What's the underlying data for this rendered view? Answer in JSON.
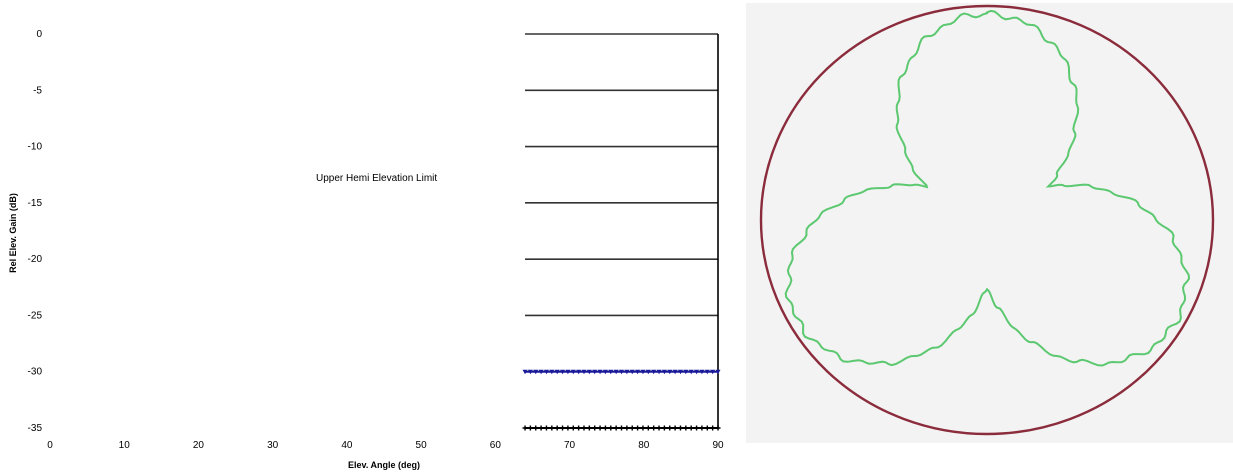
{
  "chart_data": [
    {
      "type": "line",
      "title": "",
      "xlabel": "Elev. Angle (deg)",
      "ylabel": "Rel Elev. Gain (dB)",
      "xlim": [
        0,
        90
      ],
      "ylim": [
        -35,
        0
      ],
      "x_ticks": [
        "0",
        "10",
        "20",
        "30",
        "40",
        "50",
        "60",
        "70",
        "80",
        "90"
      ],
      "y_ticks": [
        "0",
        "-5",
        "-10",
        "-15",
        "-20",
        "-25",
        "-30",
        "-35"
      ],
      "grid": "horizontal gridlines from x=64 to x=90",
      "annotation": "Upper Hemi Elevation Limit",
      "series": [
        {
          "color": "#1a1a9a",
          "marker": "triangle",
          "x": [
            64,
            66,
            68,
            70,
            72,
            74,
            76,
            78,
            80,
            82,
            84,
            86,
            88,
            90
          ],
          "y": [
            -30,
            -30,
            -30,
            -30,
            -30,
            -30,
            -30,
            -30,
            -30,
            -30,
            -30,
            -30,
            -30,
            -30
          ]
        },
        {
          "color": "#000000",
          "marker": "plus",
          "x": [
            64,
            66,
            68,
            70,
            72,
            74,
            76,
            78,
            80,
            82,
            84,
            86,
            88,
            90
          ],
          "y": [
            -35,
            -35,
            -35,
            -35,
            -35,
            -35,
            -35,
            -35,
            -35,
            -35,
            -35,
            -35,
            -35,
            -35
          ]
        }
      ],
      "colors": {
        "grid": "#333333",
        "axis": "#000000"
      }
    },
    {
      "type": "line",
      "subtype": "polar",
      "title": "",
      "series": [
        {
          "color": "#8b2c3c",
          "shape": "circle",
          "radius": 1.0
        },
        {
          "color": "#5cc870",
          "shape": "three-lobe",
          "lobes": 3,
          "max_radius": 1.0,
          "min_radius": 0.33
        }
      ],
      "background": "#f3f3f3"
    }
  ]
}
